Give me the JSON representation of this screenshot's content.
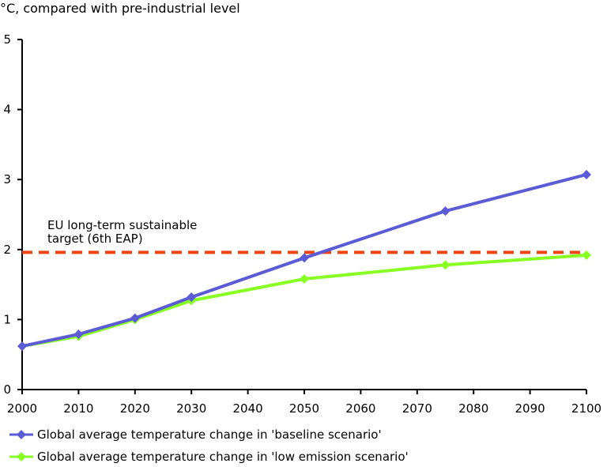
{
  "chart_data": {
    "type": "line",
    "title": "",
    "ylabel": "°C, compared with pre-industrial level",
    "xlabel": "",
    "xlim": [
      2000,
      2100
    ],
    "ylim": [
      0,
      5
    ],
    "x_ticks": [
      "2000",
      "2010",
      "2020",
      "2030",
      "2040",
      "2050",
      "2060",
      "2070",
      "2080",
      "2090",
      "2100"
    ],
    "y_ticks": [
      "0",
      "1",
      "2",
      "3",
      "4",
      "5"
    ],
    "grid": false,
    "legend_position": "bottom",
    "series": [
      {
        "name": "Global average temperature change in 'baseline scenario'",
        "color": "#5b5bd6",
        "marker": "diamond",
        "x": [
          2000,
          2010,
          2020,
          2030,
          2050,
          2075,
          2100
        ],
        "y": [
          0.62,
          0.79,
          1.02,
          1.32,
          1.88,
          2.55,
          3.07
        ]
      },
      {
        "name": "Global average temperature change in 'low emission scenario'",
        "color": "#88ff22",
        "marker": "diamond",
        "x": [
          2000,
          2010,
          2020,
          2030,
          2050,
          2075,
          2100
        ],
        "y": [
          0.62,
          0.76,
          1.0,
          1.27,
          1.58,
          1.78,
          1.92
        ]
      }
    ],
    "reference_line": {
      "value": 1.96,
      "color": "#ee4411",
      "style": "dashed",
      "label_line1": "EU long-term sustainable",
      "label_line2": "target (6th EAP)"
    }
  }
}
